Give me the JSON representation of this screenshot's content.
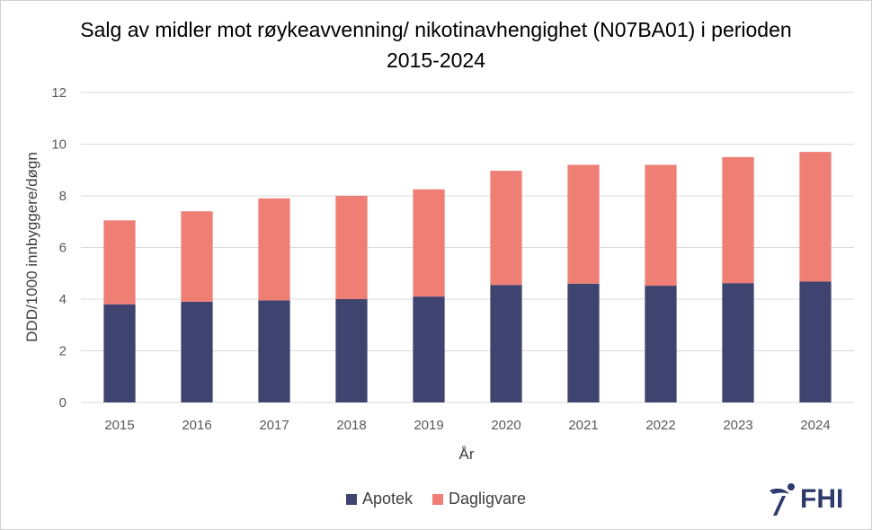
{
  "chart_data": {
    "type": "bar",
    "stacked": true,
    "title": "Salg av midler mot røykeavvenning/ nikotinavhengighet (N07BA01) i perioden 2015-2024",
    "xlabel": "År",
    "ylabel": "DDD/1000 innbyggere/døgn",
    "ylim": [
      0,
      12
    ],
    "yticks": [
      0,
      2,
      4,
      6,
      8,
      10,
      12
    ],
    "grid": true,
    "legend_position": "bottom",
    "categories": [
      "2015",
      "2016",
      "2017",
      "2018",
      "2019",
      "2020",
      "2021",
      "2022",
      "2023",
      "2024"
    ],
    "series": [
      {
        "name": "Apotek",
        "color": "#3f4370",
        "values": [
          3.8,
          3.9,
          3.95,
          4.0,
          4.1,
          4.55,
          4.6,
          4.52,
          4.62,
          4.68
        ]
      },
      {
        "name": "Dagligvare",
        "color": "#ef7f75",
        "values": [
          3.25,
          3.5,
          3.95,
          4.0,
          4.15,
          4.42,
          4.6,
          4.68,
          4.88,
          5.02
        ]
      }
    ]
  },
  "logo": {
    "text": "FHI",
    "color": "#2d3a6b"
  }
}
